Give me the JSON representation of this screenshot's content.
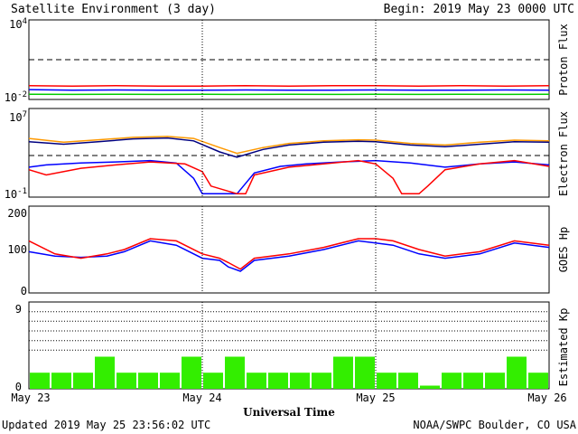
{
  "header": {
    "title": "Satellite Environment (3 day)",
    "begin": "Begin:  2019 May 23 0000 UTC"
  },
  "footer": {
    "updated": "Updated 2019 May 25 23:56:02 UTC",
    "source": "NOAA/SWPC Boulder, CO USA"
  },
  "chart_data": [
    {
      "type": "line",
      "panel": "proton",
      "ylabel": "Proton Flux",
      "yscale": "log",
      "ylim": [
        0.01,
        10000
      ],
      "tick_base": "10",
      "tick_top_exp": "4",
      "tick_bottom_exp": "-2",
      "threshold": 10,
      "x_unit": "day",
      "xlim": [
        0,
        3
      ],
      "series": [
        {
          "color": "#ff0000",
          "x": [
            0,
            0.25,
            0.5,
            0.75,
            1.0,
            1.25,
            1.5,
            1.75,
            2.0,
            2.25,
            2.5,
            2.75,
            3.0
          ],
          "values": [
            0.11,
            0.1,
            0.11,
            0.1,
            0.1,
            0.11,
            0.1,
            0.11,
            0.11,
            0.1,
            0.11,
            0.1,
            0.11
          ]
        },
        {
          "color": "#0000ff",
          "x": [
            0,
            0.25,
            0.5,
            0.75,
            1.0,
            1.25,
            1.5,
            1.75,
            2.0,
            2.25,
            2.5,
            2.75,
            3.0
          ],
          "values": [
            0.055,
            0.05,
            0.052,
            0.05,
            0.05,
            0.052,
            0.05,
            0.05,
            0.052,
            0.05,
            0.05,
            0.052,
            0.05
          ]
        },
        {
          "color": "#00cc00",
          "x": [
            0,
            0.25,
            0.5,
            0.75,
            1.0,
            1.25,
            1.5,
            1.75,
            2.0,
            2.25,
            2.5,
            2.75,
            3.0
          ],
          "values": [
            0.025,
            0.024,
            0.025,
            0.024,
            0.025,
            0.024,
            0.025,
            0.024,
            0.025,
            0.024,
            0.025,
            0.024,
            0.025
          ]
        }
      ]
    },
    {
      "type": "line",
      "panel": "electron",
      "ylabel": "Electron Flux",
      "yscale": "log",
      "ylim": [
        0.1,
        10000000
      ],
      "tick_base": "10",
      "tick_top_exp": "7",
      "tick_bottom_exp": "-1",
      "threshold": 1000,
      "x_unit": "day",
      "xlim": [
        0,
        3
      ],
      "series": [
        {
          "color": "#ff9900",
          "x": [
            0,
            0.2,
            0.4,
            0.6,
            0.8,
            0.95,
            1.1,
            1.2,
            1.35,
            1.5,
            1.7,
            1.9,
            2.0,
            2.2,
            2.4,
            2.6,
            2.8,
            3.0
          ],
          "values": [
            20000,
            9000,
            15000,
            25000,
            30000,
            20000,
            3000,
            900,
            3000,
            7000,
            12000,
            15000,
            14000,
            7000,
            5000,
            9000,
            14000,
            12000
          ]
        },
        {
          "color": "#000080",
          "x": [
            0,
            0.2,
            0.4,
            0.6,
            0.8,
            0.95,
            1.1,
            1.2,
            1.35,
            1.5,
            1.7,
            1.9,
            2.0,
            2.2,
            2.4,
            2.6,
            2.8,
            3.0
          ],
          "values": [
            10000,
            6000,
            10000,
            18000,
            22000,
            12000,
            1200,
            400,
            2000,
            5000,
            9000,
            11000,
            10000,
            5000,
            3500,
            6000,
            10000,
            9000
          ]
        },
        {
          "color": "#0000ff",
          "x": [
            0,
            0.1,
            0.3,
            0.5,
            0.7,
            0.85,
            0.95,
            1.0,
            1.1,
            1.2,
            1.3,
            1.45,
            1.6,
            1.8,
            2.0,
            2.2,
            2.4,
            2.6,
            2.8,
            3.0
          ],
          "values": [
            50,
            80,
            120,
            150,
            200,
            120,
            5,
            0.2,
            0.2,
            0.2,
            15,
            60,
            100,
            150,
            200,
            120,
            50,
            100,
            150,
            80
          ]
        },
        {
          "color": "#ff0000",
          "x": [
            0,
            0.1,
            0.3,
            0.5,
            0.7,
            0.9,
            1.0,
            1.05,
            1.2,
            1.25,
            1.3,
            1.5,
            1.7,
            1.9,
            2.0,
            2.1,
            2.15,
            2.25,
            2.3,
            2.4,
            2.6,
            2.8,
            3.0
          ],
          "values": [
            30,
            10,
            40,
            80,
            150,
            100,
            20,
            1,
            0.2,
            0.2,
            10,
            50,
            100,
            200,
            100,
            5,
            0.2,
            0.2,
            1,
            30,
            100,
            200,
            60
          ]
        }
      ]
    },
    {
      "type": "line",
      "panel": "goes_hp",
      "ylabel": "GOES Hp",
      "ylim": [
        0,
        200
      ],
      "yticks": [
        "200",
        "100",
        "0"
      ],
      "x_unit": "day",
      "xlim": [
        0,
        3
      ],
      "series": [
        {
          "color": "#0000ff",
          "x": [
            0,
            0.15,
            0.3,
            0.45,
            0.55,
            0.7,
            0.85,
            1.0,
            1.1,
            1.15,
            1.22,
            1.3,
            1.5,
            1.7,
            1.9,
            2.0,
            2.1,
            2.25,
            2.4,
            2.6,
            2.8,
            3.0
          ],
          "values": [
            95,
            85,
            82,
            85,
            95,
            120,
            110,
            80,
            75,
            60,
            50,
            75,
            85,
            100,
            120,
            115,
            110,
            90,
            80,
            90,
            115,
            105
          ]
        },
        {
          "color": "#ff0000",
          "x": [
            0,
            0.15,
            0.3,
            0.45,
            0.55,
            0.7,
            0.85,
            1.0,
            1.1,
            1.15,
            1.22,
            1.3,
            1.5,
            1.7,
            1.9,
            2.0,
            2.1,
            2.25,
            2.4,
            2.6,
            2.8,
            3.0
          ],
          "values": [
            120,
            90,
            80,
            90,
            100,
            125,
            120,
            90,
            80,
            70,
            55,
            80,
            90,
            105,
            125,
            125,
            120,
            100,
            85,
            95,
            120,
            110
          ]
        }
      ]
    },
    {
      "type": "bar",
      "panel": "kp",
      "ylabel": "Estimated Kp",
      "ylim": [
        0,
        9
      ],
      "yticks": [
        "9",
        "0"
      ],
      "gridlines": [
        4,
        5,
        6,
        7,
        8,
        9
      ],
      "color": "#33ee00",
      "x_unit": "3-hour interval",
      "values": [
        1.67,
        1.67,
        1.67,
        3.33,
        1.67,
        1.67,
        1.67,
        3.33,
        1.67,
        3.33,
        1.67,
        1.67,
        1.67,
        1.67,
        3.33,
        3.33,
        1.67,
        1.67,
        0.33,
        1.67,
        1.67,
        1.67,
        3.33,
        1.67
      ]
    }
  ],
  "x_axis": {
    "label": "Universal Time",
    "ticks": [
      "May 23",
      "May 24",
      "May 25",
      "May 26"
    ],
    "day_boundaries": [
      1,
      2
    ]
  }
}
